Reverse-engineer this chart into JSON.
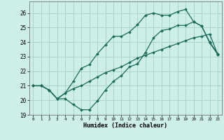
{
  "xlabel": "Humidex (Indice chaleur)",
  "xlim": [
    -0.5,
    23.5
  ],
  "ylim": [
    19,
    26.8
  ],
  "yticks": [
    19,
    20,
    21,
    22,
    23,
    24,
    25,
    26
  ],
  "xticks": [
    0,
    1,
    2,
    3,
    4,
    5,
    6,
    7,
    8,
    9,
    10,
    11,
    12,
    13,
    14,
    15,
    16,
    17,
    18,
    19,
    20,
    21,
    22,
    23
  ],
  "bg_color": "#ceeee8",
  "grid_color": "#aad4cc",
  "line_color": "#1a6b5a",
  "line1_x": [
    0,
    1,
    2,
    3,
    4,
    5,
    6,
    7,
    8,
    9,
    10,
    11,
    12,
    13,
    14,
    15,
    16,
    17,
    18,
    19,
    20,
    21,
    22,
    23
  ],
  "line1_y": [
    21.0,
    21.0,
    20.7,
    20.1,
    20.1,
    19.7,
    19.35,
    19.35,
    19.95,
    20.7,
    21.3,
    21.7,
    22.3,
    22.5,
    23.3,
    24.3,
    24.8,
    24.9,
    25.15,
    25.15,
    25.4,
    25.1,
    24.0,
    23.2
  ],
  "line2_x": [
    0,
    1,
    2,
    3,
    4,
    5,
    6,
    7,
    8,
    9,
    10,
    11,
    12,
    13,
    14,
    15,
    16,
    17,
    18,
    19,
    20,
    21,
    22,
    23
  ],
  "line2_y": [
    21.0,
    21.0,
    20.7,
    20.1,
    20.5,
    20.8,
    21.0,
    21.3,
    21.6,
    21.9,
    22.1,
    22.3,
    22.6,
    22.9,
    23.1,
    23.3,
    23.5,
    23.7,
    23.9,
    24.1,
    24.3,
    24.4,
    24.55,
    23.15
  ],
  "line3_x": [
    0,
    1,
    2,
    3,
    4,
    5,
    6,
    7,
    8,
    9,
    10,
    11,
    12,
    13,
    14,
    15,
    16,
    17,
    18,
    19,
    20,
    21,
    22,
    23
  ],
  "line3_y": [
    21.0,
    21.0,
    20.7,
    20.1,
    20.5,
    21.3,
    22.2,
    22.45,
    23.2,
    23.8,
    24.4,
    24.4,
    24.7,
    25.2,
    25.85,
    26.0,
    25.85,
    25.85,
    26.1,
    26.25,
    25.4,
    25.1,
    23.95,
    23.15
  ]
}
